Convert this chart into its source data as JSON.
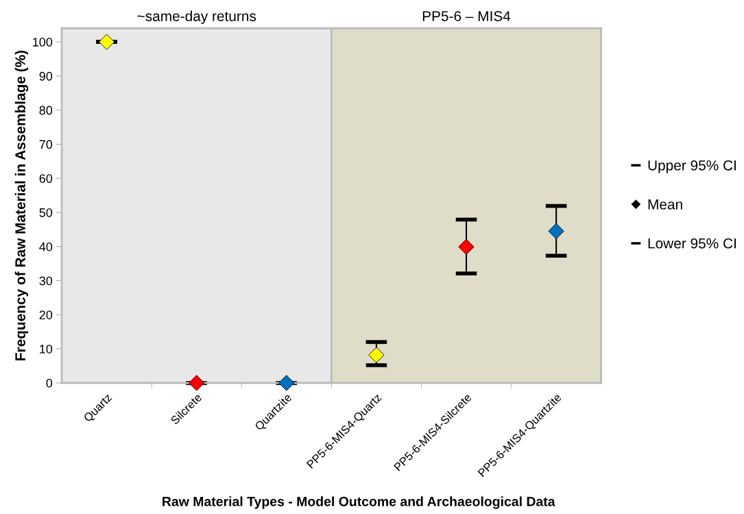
{
  "chart_data": {
    "type": "scatter",
    "xlabel": "Raw Material Types - Model Outcome and Archaeological Data",
    "ylabel": "Frequency of Raw Material in Assemblage (%)",
    "categories": [
      "Quartz",
      "Silcrete",
      "Quartzite",
      "PP5-6-MIS4-Quartz",
      "PP5-6-MIS4-Silcrete",
      "PP5-6-MIS4-Quartzite"
    ],
    "series": [
      {
        "name": "Mean",
        "color": "#000000",
        "colors": [
          "#ffff00",
          "#ff0000",
          "#0070c0",
          "#ffff00",
          "#ff0000",
          "#0070c0"
        ],
        "marker": "diamond",
        "values": [
          100,
          0,
          0,
          8.2,
          39.9,
          44.5
        ],
        "errors": [
          [
            100,
            100
          ],
          [
            0,
            0
          ],
          [
            0,
            0
          ],
          [
            5.2,
            12.0
          ],
          [
            32.1,
            47.9
          ],
          [
            37.3,
            51.9
          ]
        ]
      }
    ],
    "annotations": [
      "Upper 95% CI",
      "Lower 95% CI"
    ],
    "bands": [
      {
        "axis": "x",
        "from": "Quartz",
        "to": "Quartzite",
        "label": "~same-day returns",
        "color": "#e8e8e8"
      },
      {
        "axis": "x",
        "from": "PP5-6-MIS4-Quartz",
        "to": "PP5-6-MIS4-Quartzite",
        "label": "PP5-6 – MIS4",
        "color": "#dfdcc8"
      }
    ],
    "ylim": [
      0,
      104
    ],
    "yticks": [
      0,
      10,
      20,
      30,
      40,
      50,
      60,
      70,
      80,
      90,
      100
    ],
    "grid": false,
    "legend": "right"
  }
}
